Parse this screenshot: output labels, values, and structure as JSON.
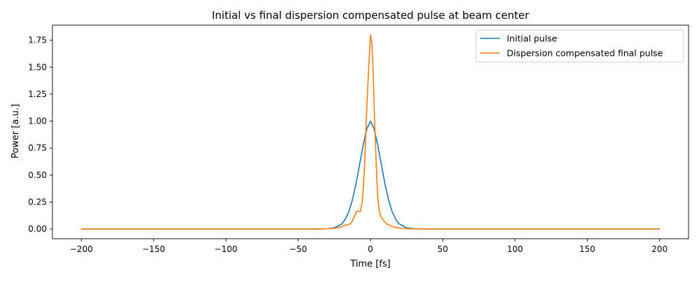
{
  "chart_data": {
    "type": "line",
    "title": "Initial vs final dispersion compensated pulse at beam center",
    "xlabel": "Time [fs]",
    "ylabel": "Power [a.u.]",
    "xlim": [
      -220,
      220
    ],
    "ylim": [
      -0.09,
      1.89
    ],
    "x_ticks": [
      -200,
      -150,
      -100,
      -50,
      0,
      50,
      100,
      150,
      200
    ],
    "x_tick_labels": [
      "−200",
      "−150",
      "−100",
      "−50",
      "0",
      "50",
      "100",
      "150",
      "200"
    ],
    "y_ticks": [
      0.0,
      0.25,
      0.5,
      0.75,
      1.0,
      1.25,
      1.5,
      1.75
    ],
    "y_tick_labels": [
      "0.00",
      "0.25",
      "0.50",
      "0.75",
      "1.00",
      "1.25",
      "1.50",
      "1.75"
    ],
    "grid": false,
    "legend_position": "top-right",
    "series": [
      {
        "name": "Initial pulse",
        "color": "#1f77b4",
        "points": [
          [
            -200,
            0
          ],
          [
            -40,
            0
          ],
          [
            -30,
            0.003
          ],
          [
            -25,
            0.012
          ],
          [
            -20,
            0.045
          ],
          [
            -17.5,
            0.09
          ],
          [
            -15,
            0.16
          ],
          [
            -12.5,
            0.27
          ],
          [
            -10,
            0.42
          ],
          [
            -7.5,
            0.6
          ],
          [
            -5,
            0.78
          ],
          [
            -2.5,
            0.93
          ],
          [
            0,
            1.0
          ],
          [
            2.5,
            0.93
          ],
          [
            5,
            0.78
          ],
          [
            7.5,
            0.6
          ],
          [
            10,
            0.42
          ],
          [
            12.5,
            0.27
          ],
          [
            15,
            0.16
          ],
          [
            17.5,
            0.09
          ],
          [
            20,
            0.045
          ],
          [
            25,
            0.012
          ],
          [
            30,
            0.003
          ],
          [
            40,
            0
          ],
          [
            200,
            0
          ]
        ]
      },
      {
        "name": "Dispersion compensated final pulse",
        "color": "#ff7f0e",
        "points": [
          [
            -200,
            0
          ],
          [
            -35,
            0
          ],
          [
            -28,
            0.004
          ],
          [
            -23,
            0.01
          ],
          [
            -20,
            0.02
          ],
          [
            -18,
            0.035
          ],
          [
            -15,
            0.04
          ],
          [
            -13,
            0.06
          ],
          [
            -11,
            0.12
          ],
          [
            -9.5,
            0.165
          ],
          [
            -8,
            0.165
          ],
          [
            -7,
            0.16
          ],
          [
            -5.5,
            0.27
          ],
          [
            -4,
            0.6
          ],
          [
            -2.5,
            1.15
          ],
          [
            -1,
            1.55
          ],
          [
            0,
            1.8
          ],
          [
            1,
            1.72
          ],
          [
            2,
            1.4
          ],
          [
            3,
            0.95
          ],
          [
            4,
            0.6
          ],
          [
            5,
            0.3
          ],
          [
            6,
            0.18
          ],
          [
            7,
            0.12
          ],
          [
            9,
            0.08
          ],
          [
            11,
            0.05
          ],
          [
            14,
            0.03
          ],
          [
            17,
            0.015
          ],
          [
            22,
            0.006
          ],
          [
            28,
            0.002
          ],
          [
            40,
            0
          ],
          [
            200,
            0
          ]
        ]
      }
    ]
  }
}
